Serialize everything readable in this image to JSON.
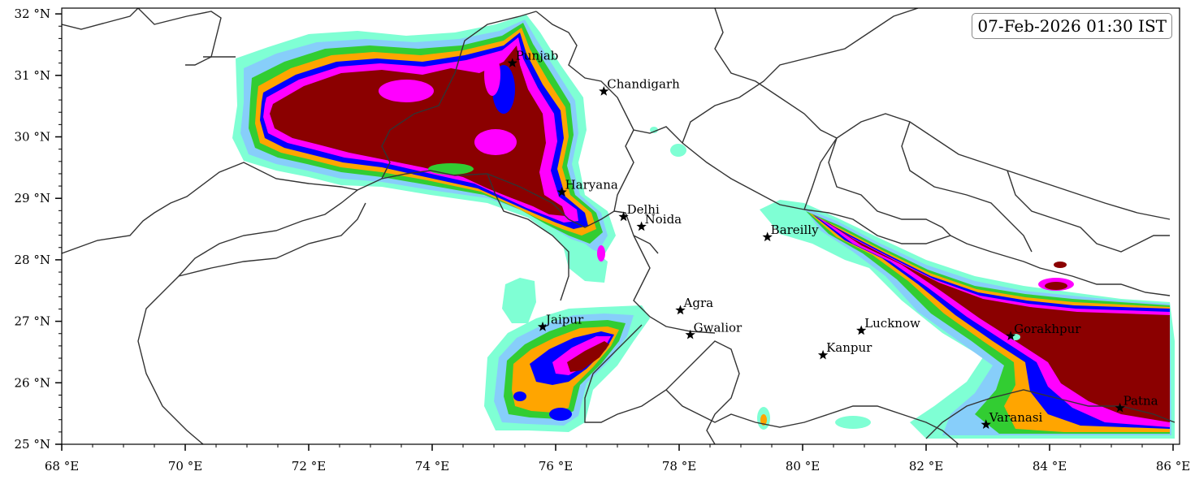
{
  "timestamp": "07-Feb-2026 01:30 IST",
  "axes": {
    "x_ticks": [
      {
        "value": 68,
        "label": "68 °E"
      },
      {
        "value": 70,
        "label": "70 °E"
      },
      {
        "value": 72,
        "label": "72 °E"
      },
      {
        "value": 74,
        "label": "74 °E"
      },
      {
        "value": 76,
        "label": "76 °E"
      },
      {
        "value": 78,
        "label": "78 °E"
      },
      {
        "value": 80,
        "label": "80 °E"
      },
      {
        "value": 82,
        "label": "82 °E"
      },
      {
        "value": 84,
        "label": "84 °E"
      },
      {
        "value": 86,
        "label": "86 °E"
      }
    ],
    "y_ticks": [
      {
        "value": 25,
        "label": "25 °N"
      },
      {
        "value": 26,
        "label": "26 °N"
      },
      {
        "value": 27,
        "label": "27 °N"
      },
      {
        "value": 28,
        "label": "28 °N"
      },
      {
        "value": 29,
        "label": "29 °N"
      },
      {
        "value": 30,
        "label": "30 °N"
      },
      {
        "value": 31,
        "label": "31 °N"
      },
      {
        "value": 32,
        "label": "32 °N"
      }
    ],
    "xlim": [
      68,
      86.2
    ],
    "ylim": [
      25,
      32.1
    ]
  },
  "cities": [
    {
      "name": "Punjab",
      "lon": 75.3,
      "lat": 31.2
    },
    {
      "name": "Chandigarh",
      "lon": 76.78,
      "lat": 30.74
    },
    {
      "name": "Haryana",
      "lon": 76.1,
      "lat": 29.1
    },
    {
      "name": "Delhi",
      "lon": 77.1,
      "lat": 28.7
    },
    {
      "name": "Noida",
      "lon": 77.39,
      "lat": 28.54
    },
    {
      "name": "Bareilly",
      "lon": 79.43,
      "lat": 28.37
    },
    {
      "name": "Jaipur",
      "lon": 75.79,
      "lat": 26.91
    },
    {
      "name": "Agra",
      "lon": 78.02,
      "lat": 27.18
    },
    {
      "name": "Gwalior",
      "lon": 78.18,
      "lat": 26.78
    },
    {
      "name": "Lucknow",
      "lon": 80.95,
      "lat": 26.85
    },
    {
      "name": "Kanpur",
      "lon": 80.33,
      "lat": 26.45
    },
    {
      "name": "Gorakhpur",
      "lon": 83.37,
      "lat": 26.76
    },
    {
      "name": "Patna",
      "lon": 85.14,
      "lat": 25.59
    },
    {
      "name": "Varanasi",
      "lon": 82.97,
      "lat": 25.32
    }
  ],
  "palette": {
    "aqua": "#7fffd4",
    "lightblue": "#87cefa",
    "teal": "#2e8b8b",
    "green": "#32cd32",
    "orange": "#ffa500",
    "blue": "#0000ff",
    "magenta": "#ff00ff",
    "darkred": "#8b0000",
    "border": "#333333"
  }
}
